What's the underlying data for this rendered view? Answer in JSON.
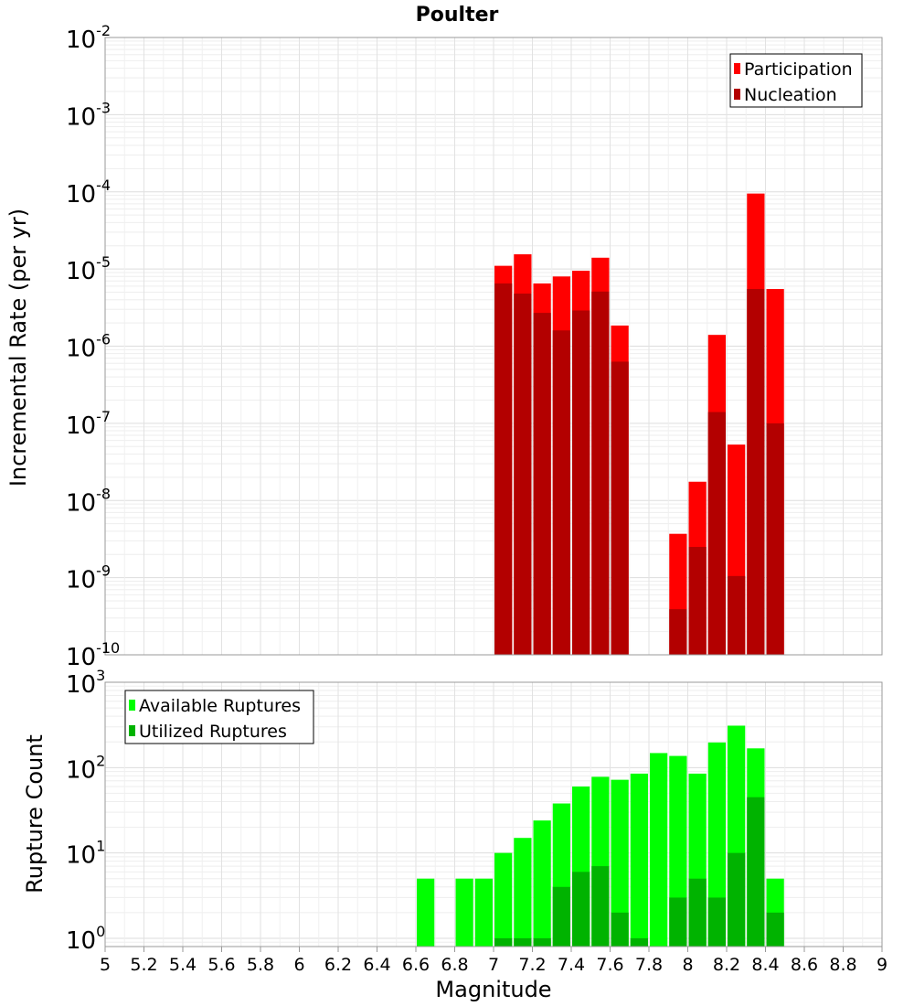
{
  "chart_data": [
    {
      "type": "bar",
      "title": "Poulter",
      "ylabel": "Incremental Rate (per yr)",
      "xlabel": "",
      "yscale": "log",
      "ylim": [
        1e-10,
        0.01
      ],
      "xlim": [
        5,
        9
      ],
      "y_ticks": [
        {
          "base": "10",
          "exp": "-10"
        },
        {
          "base": "10",
          "exp": "-9"
        },
        {
          "base": "10",
          "exp": "-8"
        },
        {
          "base": "10",
          "exp": "-7"
        },
        {
          "base": "10",
          "exp": "-6"
        },
        {
          "base": "10",
          "exp": "-5"
        },
        {
          "base": "10",
          "exp": "-4"
        },
        {
          "base": "10",
          "exp": "-3"
        },
        {
          "base": "10",
          "exp": "-2"
        }
      ],
      "grid": true,
      "legend_position": "top-right",
      "series": [
        {
          "name": "Participation",
          "color": "#ff0000",
          "points": [
            {
              "x": 7.05,
              "y": 1.1e-05
            },
            {
              "x": 7.15,
              "y": 1.55e-05
            },
            {
              "x": 7.25,
              "y": 6.5e-06
            },
            {
              "x": 7.35,
              "y": 8e-06
            },
            {
              "x": 7.45,
              "y": 9.5e-06
            },
            {
              "x": 7.55,
              "y": 1.4e-05
            },
            {
              "x": 7.65,
              "y": 1.85e-06
            },
            {
              "x": 7.95,
              "y": 3.7e-09
            },
            {
              "x": 8.05,
              "y": 1.75e-08
            },
            {
              "x": 8.15,
              "y": 1.4e-06
            },
            {
              "x": 8.25,
              "y": 5.3e-08
            },
            {
              "x": 8.35,
              "y": 9.5e-05
            },
            {
              "x": 8.45,
              "y": 5.5e-06
            }
          ]
        },
        {
          "name": "Nucleation",
          "color": "#b30000",
          "points": [
            {
              "x": 7.05,
              "y": 6.5e-06
            },
            {
              "x": 7.15,
              "y": 4.8e-06
            },
            {
              "x": 7.25,
              "y": 2.7e-06
            },
            {
              "x": 7.35,
              "y": 1.6e-06
            },
            {
              "x": 7.45,
              "y": 2.9e-06
            },
            {
              "x": 7.55,
              "y": 5.1e-06
            },
            {
              "x": 7.65,
              "y": 6.3e-07
            },
            {
              "x": 7.95,
              "y": 3.9e-10
            },
            {
              "x": 8.05,
              "y": 2.5e-09
            },
            {
              "x": 8.15,
              "y": 1.4e-07
            },
            {
              "x": 8.25,
              "y": 1.05e-09
            },
            {
              "x": 8.35,
              "y": 5.5e-06
            },
            {
              "x": 8.45,
              "y": 1e-07
            }
          ]
        }
      ]
    },
    {
      "type": "bar",
      "title": "",
      "ylabel": "Rupture Count",
      "xlabel": "Magnitude",
      "yscale": "log",
      "ylim": [
        0.8,
        1000
      ],
      "xlim": [
        5,
        9
      ],
      "y_ticks": [
        {
          "base": "10",
          "exp": "0",
          "v": 1
        },
        {
          "base": "10",
          "exp": "1",
          "v": 10
        },
        {
          "base": "10",
          "exp": "2",
          "v": 100
        },
        {
          "base": "10",
          "exp": "3",
          "v": 1000
        }
      ],
      "x_ticks": [
        "5",
        "5.2",
        "5.4",
        "5.6",
        "5.8",
        "6",
        "6.2",
        "6.4",
        "6.6",
        "6.8",
        "7",
        "7.2",
        "7.4",
        "7.6",
        "7.8",
        "8",
        "8.2",
        "8.4",
        "8.6",
        "8.8",
        "9"
      ],
      "grid": true,
      "legend_position": "top-left",
      "series": [
        {
          "name": "Available Ruptures",
          "color": "#00ff00",
          "points": [
            {
              "x": 6.65,
              "y": 5
            },
            {
              "x": 6.85,
              "y": 5
            },
            {
              "x": 6.95,
              "y": 5
            },
            {
              "x": 7.05,
              "y": 10
            },
            {
              "x": 7.15,
              "y": 15
            },
            {
              "x": 7.25,
              "y": 24
            },
            {
              "x": 7.35,
              "y": 38
            },
            {
              "x": 7.45,
              "y": 60
            },
            {
              "x": 7.55,
              "y": 78
            },
            {
              "x": 7.65,
              "y": 72
            },
            {
              "x": 7.75,
              "y": 85
            },
            {
              "x": 7.85,
              "y": 148
            },
            {
              "x": 7.95,
              "y": 137
            },
            {
              "x": 8.05,
              "y": 85
            },
            {
              "x": 8.15,
              "y": 197
            },
            {
              "x": 8.25,
              "y": 310
            },
            {
              "x": 8.35,
              "y": 168
            },
            {
              "x": 8.45,
              "y": 5
            }
          ]
        },
        {
          "name": "Utilized Ruptures",
          "color": "#00b300",
          "points": [
            {
              "x": 7.05,
              "y": 1
            },
            {
              "x": 7.15,
              "y": 1
            },
            {
              "x": 7.25,
              "y": 1
            },
            {
              "x": 7.35,
              "y": 4
            },
            {
              "x": 7.45,
              "y": 6
            },
            {
              "x": 7.55,
              "y": 7
            },
            {
              "x": 7.65,
              "y": 2
            },
            {
              "x": 7.75,
              "y": 1
            },
            {
              "x": 7.95,
              "y": 3
            },
            {
              "x": 8.05,
              "y": 5
            },
            {
              "x": 8.15,
              "y": 3
            },
            {
              "x": 8.25,
              "y": 10
            },
            {
              "x": 8.35,
              "y": 45
            },
            {
              "x": 8.45,
              "y": 2
            }
          ]
        }
      ]
    }
  ]
}
